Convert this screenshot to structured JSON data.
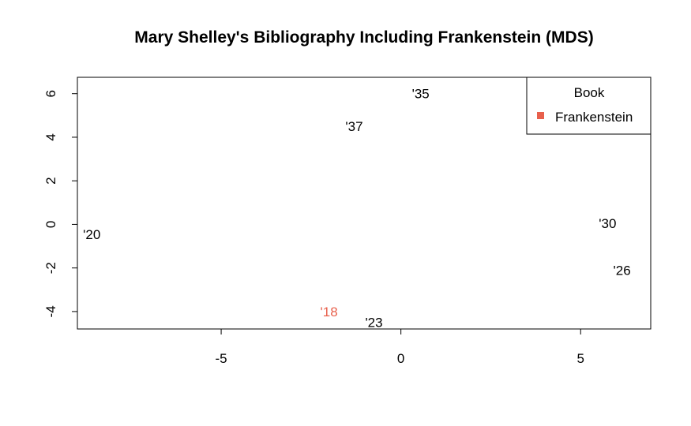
{
  "chart_data": {
    "type": "scatter",
    "title": "Mary Shelley's Bibliography Including Frankenstein (MDS)",
    "xlabel": "",
    "ylabel": "",
    "xlim": [
      -9.0,
      6.95
    ],
    "ylim": [
      -4.8,
      6.75
    ],
    "x_ticks": [
      -5,
      0,
      5
    ],
    "y_ticks": [
      -4,
      -2,
      0,
      2,
      4,
      6
    ],
    "grid": false,
    "points": [
      {
        "label": "'18",
        "x": -2.0,
        "y": -4.0,
        "highlight": true
      },
      {
        "label": "'20",
        "x": -8.6,
        "y": -0.45,
        "highlight": false
      },
      {
        "label": "'23",
        "x": -0.75,
        "y": -4.5,
        "highlight": false
      },
      {
        "label": "'26",
        "x": 6.15,
        "y": -2.1,
        "highlight": false
      },
      {
        "label": "'30",
        "x": 5.75,
        "y": 0.05,
        "highlight": false
      },
      {
        "label": "'35",
        "x": 0.55,
        "y": 6.0,
        "highlight": false
      },
      {
        "label": "'37",
        "x": -1.3,
        "y": 4.5,
        "highlight": false
      }
    ],
    "legend": {
      "title": "Book",
      "entries": [
        {
          "name": "Frankenstein",
          "color": "#e8604c"
        }
      ],
      "placement": "top-right"
    },
    "colors": {
      "highlight": "#e8604c",
      "default": "#000000"
    }
  }
}
